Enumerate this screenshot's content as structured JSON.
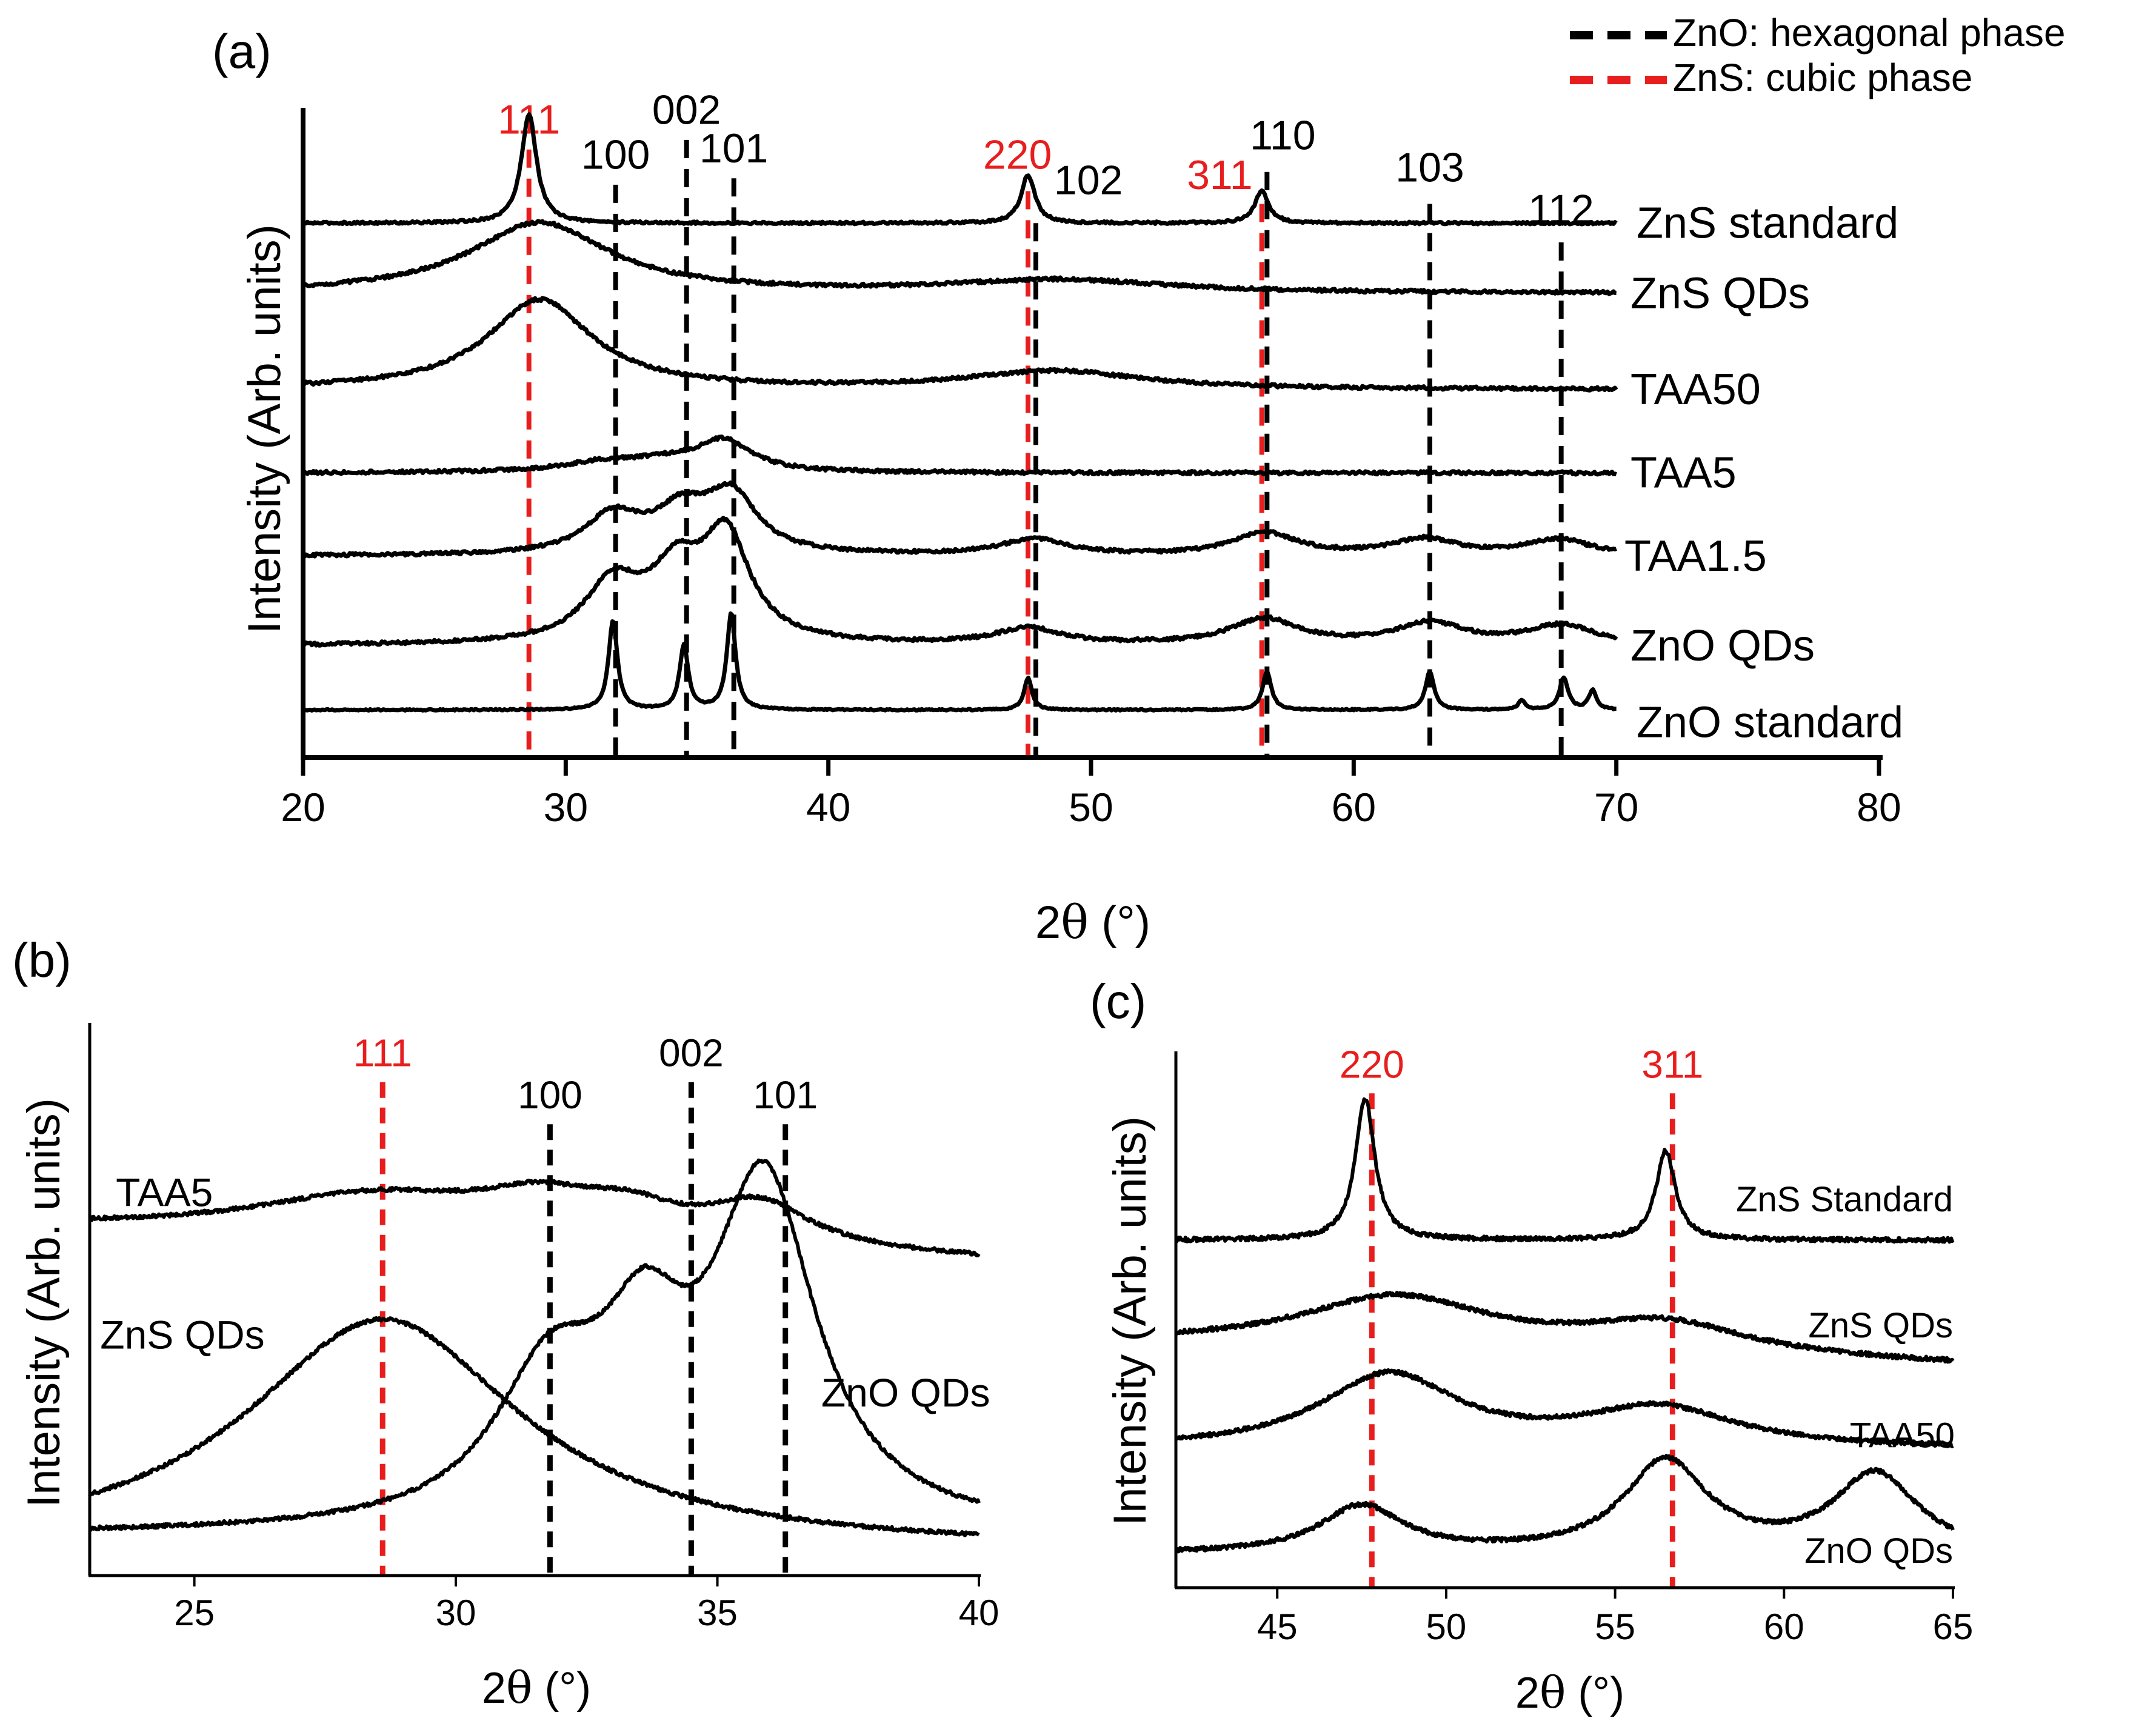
{
  "figure": {
    "legend": [
      {
        "label": "ZnO: hexagonal phase",
        "color": "#000000"
      },
      {
        "label": "ZnS: cubic phase",
        "color": "#e81e1e"
      }
    ]
  },
  "colors": {
    "trace": "#000000",
    "hexagonal": "#000000",
    "cubic": "#e81e1e"
  },
  "chart_data": [
    {
      "id": "a",
      "panel_label": "(a)",
      "type": "line",
      "xlabel_prefix": "2",
      "xlabel_theta": "θ",
      "xlabel_suffix": " (°)",
      "ylabel": "Intensity (Arb. units)",
      "xlim": [
        20,
        80
      ],
      "ylim": [
        0,
        100
      ],
      "xticks": [
        20,
        30,
        40,
        50,
        60,
        70,
        80
      ],
      "series": [
        {
          "name": "ZnS standard",
          "base": 82,
          "noise": 0.18,
          "x_end": 70,
          "peaks": [
            [
              28.6,
              17,
              0.35
            ],
            [
              47.6,
              7.5,
              0.32
            ],
            [
              56.5,
              5,
              0.32
            ]
          ]
        },
        {
          "name": "ZnS QDs",
          "base": 71,
          "noise": 0.25,
          "x_end": 70,
          "peaks": [
            [
              29,
              11,
              3.2
            ],
            [
              48.8,
              2,
              5
            ]
          ]
        },
        {
          "name": "TAA50",
          "base": 56,
          "noise": 0.25,
          "x_end": 70,
          "peaks": [
            [
              29,
              14,
              2.4
            ],
            [
              48.6,
              2.8,
              4
            ]
          ]
        },
        {
          "name": "TAA5",
          "base": 43,
          "noise": 0.25,
          "x_end": 70,
          "peaks": [
            [
              31.5,
              1.5,
              2
            ],
            [
              33.8,
              1.2,
              1.5
            ],
            [
              36,
              4.8,
              1.3
            ]
          ]
        },
        {
          "name": "TAA1.5",
          "base": 30,
          "noise": 0.25,
          "x_end": 70,
          "peaks": [
            [
              31.8,
              6,
              1.3
            ],
            [
              34.4,
              6,
              1.2
            ],
            [
              36.3,
              9,
              1.2
            ],
            [
              47.8,
              2.5,
              1.5
            ],
            [
              56.6,
              3.5,
              1.5
            ],
            [
              62.7,
              2.5,
              1.5
            ],
            [
              67.8,
              2.5,
              1.5
            ]
          ]
        },
        {
          "name": "ZnO QDs",
          "base": 16,
          "noise": 0.25,
          "x_end": 70,
          "peaks": [
            [
              31.8,
              9,
              1.3
            ],
            [
              34.2,
              10,
              1.2
            ],
            [
              36.1,
              16,
              1.1
            ],
            [
              47.6,
              2.5,
              1.5
            ],
            [
              56.6,
              4,
              1.6
            ],
            [
              62.9,
              3.3,
              1.6
            ],
            [
              67.9,
              3,
              1.6
            ]
          ]
        },
        {
          "name": "ZnO standard",
          "base": 6,
          "noise": 0.1,
          "x_end": 70,
          "peaks": [
            [
              31.8,
              14,
              0.2
            ],
            [
              34.5,
              10,
              0.2
            ],
            [
              36.3,
              15,
              0.2
            ],
            [
              47.6,
              5,
              0.18
            ],
            [
              56.7,
              6,
              0.2
            ],
            [
              62.9,
              6,
              0.2
            ],
            [
              66.4,
              1.5,
              0.15
            ],
            [
              68,
              5,
              0.2
            ],
            [
              69.1,
              3,
              0.18
            ]
          ]
        }
      ],
      "series_label_values": [
        82,
        71,
        56,
        43,
        30,
        16,
        4
      ],
      "reflections": [
        {
          "label": "111",
          "x": 28.6,
          "phase": "cubic",
          "y_top": 93.5,
          "label_y": 96,
          "label_dx": 0
        },
        {
          "label": "100",
          "x": 31.9,
          "phase": "hexagonal",
          "y_top": 88,
          "label_y": 90.5,
          "label_dx": 0
        },
        {
          "label": "002",
          "x": 34.6,
          "phase": "hexagonal",
          "y_top": 95,
          "label_y": 97.5,
          "label_dx": 0
        },
        {
          "label": "101",
          "x": 36.4,
          "phase": "hexagonal",
          "y_top": 89,
          "label_y": 91.5,
          "label_dx": 0
        },
        {
          "label": "220",
          "x": 47.6,
          "phase": "cubic",
          "y_top": 87,
          "label_y": 90.5,
          "label_dx": -0.4
        },
        {
          "label": "102",
          "x": 47.9,
          "phase": "hexagonal",
          "y_top": 82,
          "label_y": 86.5,
          "label_dx": 2.0
        },
        {
          "label": "311",
          "x": 56.5,
          "phase": "cubic",
          "y_top": 85,
          "label_y": 87.3,
          "label_dx": -1.6
        },
        {
          "label": "110",
          "x": 56.7,
          "phase": "hexagonal",
          "y_top": 90,
          "label_y": 93.5,
          "label_dx": 0.6
        },
        {
          "label": "103",
          "x": 62.9,
          "phase": "hexagonal",
          "y_top": 85,
          "label_y": 88.5,
          "label_dx": 0
        },
        {
          "label": "112",
          "x": 67.9,
          "phase": "hexagonal",
          "y_top": 79,
          "label_y": 82,
          "label_dx": 0
        }
      ]
    },
    {
      "id": "b",
      "panel_label": "(b)",
      "type": "line",
      "xlabel_prefix": "2",
      "xlabel_theta": "θ",
      "xlabel_suffix": " (°)",
      "ylabel": "Intensity (Arb. units)",
      "xlim": [
        23,
        40
      ],
      "ylim": [
        0,
        100
      ],
      "xticks": [
        25,
        30,
        35,
        40
      ],
      "series": [
        {
          "name": "TAA5",
          "base": 61,
          "slope": -0.6,
          "noise": 0.35,
          "peaks": [
            [
              28.5,
              8,
              3
            ],
            [
              31.6,
              6,
              1.4
            ],
            [
              33.3,
              5,
              1.2
            ],
            [
              35.8,
              8,
              1.2
            ]
          ]
        },
        {
          "name": "ZnS QDs",
          "base": 0,
          "noise": 0.35,
          "peaks": [
            [
              28.6,
              44,
              3.2
            ]
          ]
        },
        {
          "name": "ZnO QDs",
          "base": 3,
          "noise": 0.35,
          "peaks": [
            [
              31.8,
              27,
              1.3
            ],
            [
              33.6,
              28,
              1.0
            ],
            [
              35.9,
              64,
              1.2
            ]
          ]
        }
      ],
      "series_labels": [
        {
          "name": "TAA5",
          "x": 23.5,
          "y": 68,
          "anchor": "start"
        },
        {
          "name": "ZnS QDs",
          "x": 23.2,
          "y": 41,
          "anchor": "start"
        },
        {
          "name": "ZnO QDs",
          "x": 38.6,
          "y": 30,
          "anchor": "middle"
        }
      ],
      "reflections": [
        {
          "label": "111",
          "x": 28.6,
          "phase": "cubic",
          "y_top": 89,
          "label_y": 92
        },
        {
          "label": "100",
          "x": 31.8,
          "phase": "hexagonal",
          "y_top": 81,
          "label_y": 84
        },
        {
          "label": "002",
          "x": 34.5,
          "phase": "hexagonal",
          "y_top": 89,
          "label_y": 92
        },
        {
          "label": "101",
          "x": 36.3,
          "phase": "hexagonal",
          "y_top": 81,
          "label_y": 84
        }
      ]
    },
    {
      "id": "c",
      "panel_label": "(c)",
      "type": "line",
      "xlabel_prefix": "2",
      "xlabel_theta": "θ",
      "xlabel_suffix": " (°)",
      "ylabel": "Intensity (Arb. units)",
      "xlim": [
        42,
        65
      ],
      "ylim": [
        0,
        100
      ],
      "xticks": [
        45,
        50,
        55,
        60,
        65
      ],
      "series": [
        {
          "name": "ZnS Standard",
          "base": 64,
          "noise": 0.4,
          "peaks": [
            [
              47.6,
              27,
              0.35
            ],
            [
              56.5,
              17,
              0.35
            ]
          ]
        },
        {
          "name": "ZnS QDs",
          "base": 44,
          "slope": -0.4,
          "noise": 0.4,
          "peaks": [
            [
              48.5,
              10,
              3.5
            ],
            [
              56.5,
              6,
              3
            ]
          ]
        },
        {
          "name": "TAA50",
          "base": 24,
          "noise": 0.4,
          "peaks": [
            [
              48.3,
              14,
              2.5
            ],
            [
              56.3,
              7.5,
              2.8
            ]
          ]
        },
        {
          "name": "ZnO QDs",
          "base": 4,
          "noise": 0.4,
          "peaks": [
            [
              47.5,
              9,
              1.5
            ],
            [
              56.5,
              17.5,
              1.5
            ],
            [
              62.7,
              15,
              1.5
            ]
          ]
        }
      ],
      "series_labels": [
        {
          "name": "ZnS Standard",
          "x": 65,
          "y": 72,
          "anchor": "end"
        },
        {
          "name": "ZnS QDs",
          "x": 65,
          "y": 48,
          "anchor": "end"
        },
        {
          "name": "TAA50",
          "x": 63.5,
          "y": 27,
          "anchor": "middle"
        },
        {
          "name": "ZnO QDs",
          "x": 65,
          "y": 5,
          "anchor": "end"
        }
      ],
      "reflections": [
        {
          "label": "220",
          "x": 47.8,
          "phase": "cubic",
          "y_top": 92,
          "label_y": 95
        },
        {
          "label": "311",
          "x": 56.7,
          "phase": "cubic",
          "y_top": 92,
          "label_y": 95
        }
      ]
    }
  ]
}
